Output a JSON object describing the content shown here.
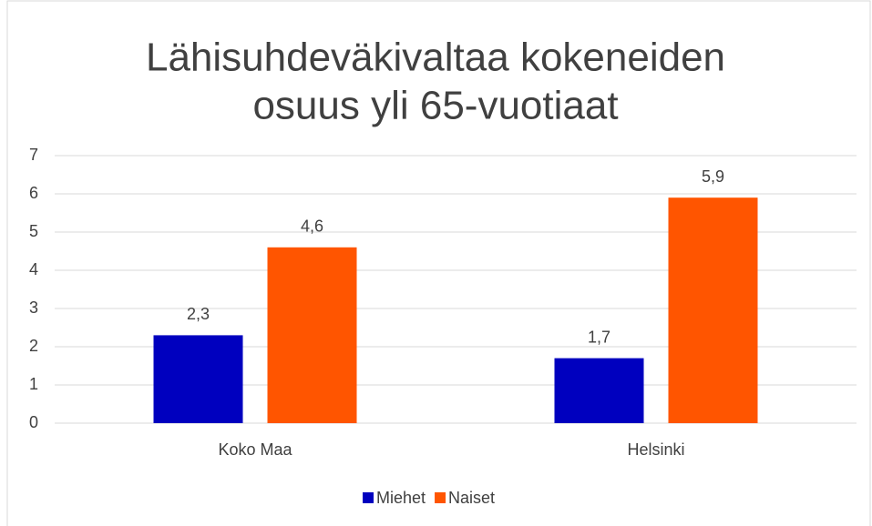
{
  "chart_data": {
    "type": "bar",
    "title": [
      "Lähisuhdeväkivaltaa kokeneiden",
      "osuus yli 65-vuotiaat"
    ],
    "categories": [
      "Koko Maa",
      "Helsinki"
    ],
    "series": [
      {
        "name": "Miehet",
        "color": "#0000bf",
        "values": [
          2.3,
          1.7
        ],
        "value_labels": [
          "2,3",
          "1,7"
        ]
      },
      {
        "name": "Naiset",
        "color": "#ff5500",
        "values": [
          4.6,
          5.9
        ],
        "value_labels": [
          "4,6",
          "5,9"
        ]
      }
    ],
    "ylim": [
      0,
      7
    ],
    "yticks": [
      0,
      1,
      2,
      3,
      4,
      5,
      6,
      7
    ],
    "grid": true,
    "legend": "bottom"
  }
}
